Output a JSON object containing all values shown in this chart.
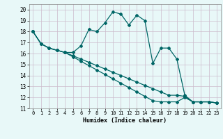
{
  "xlabel": "Humidex (Indice chaleur)",
  "bg_color": "#e8f8f8",
  "grid_color": "#ccbbcc",
  "line_color": "#006666",
  "xlim": [
    -0.5,
    23.5
  ],
  "ylim": [
    11,
    20.5
  ],
  "xticks": [
    0,
    1,
    2,
    3,
    4,
    5,
    6,
    7,
    8,
    9,
    10,
    11,
    12,
    13,
    14,
    15,
    16,
    17,
    18,
    19,
    20,
    21,
    22,
    23
  ],
  "yticks": [
    11,
    12,
    13,
    14,
    15,
    16,
    17,
    18,
    19,
    20
  ],
  "line1": [
    18.0,
    16.9,
    16.5,
    16.3,
    16.1,
    16.1,
    16.7,
    18.2,
    18.0,
    18.8,
    19.8,
    19.6,
    18.6,
    19.5,
    19.0,
    15.1,
    16.5,
    16.5,
    15.5,
    12.2,
    11.6,
    11.6,
    11.6,
    11.5
  ],
  "line2": [
    18.0,
    16.9,
    16.5,
    16.3,
    16.1,
    15.8,
    15.5,
    15.2,
    14.9,
    14.6,
    14.3,
    14.0,
    13.7,
    13.4,
    13.1,
    12.8,
    12.5,
    12.2,
    12.2,
    12.1,
    11.6,
    11.6,
    11.6,
    11.5
  ],
  "line3": [
    18.0,
    16.9,
    16.5,
    16.3,
    16.1,
    15.7,
    15.3,
    14.9,
    14.5,
    14.1,
    13.7,
    13.3,
    12.9,
    12.5,
    12.1,
    11.7,
    11.6,
    11.6,
    11.6,
    12.0,
    11.6,
    11.6,
    11.6,
    11.5
  ]
}
